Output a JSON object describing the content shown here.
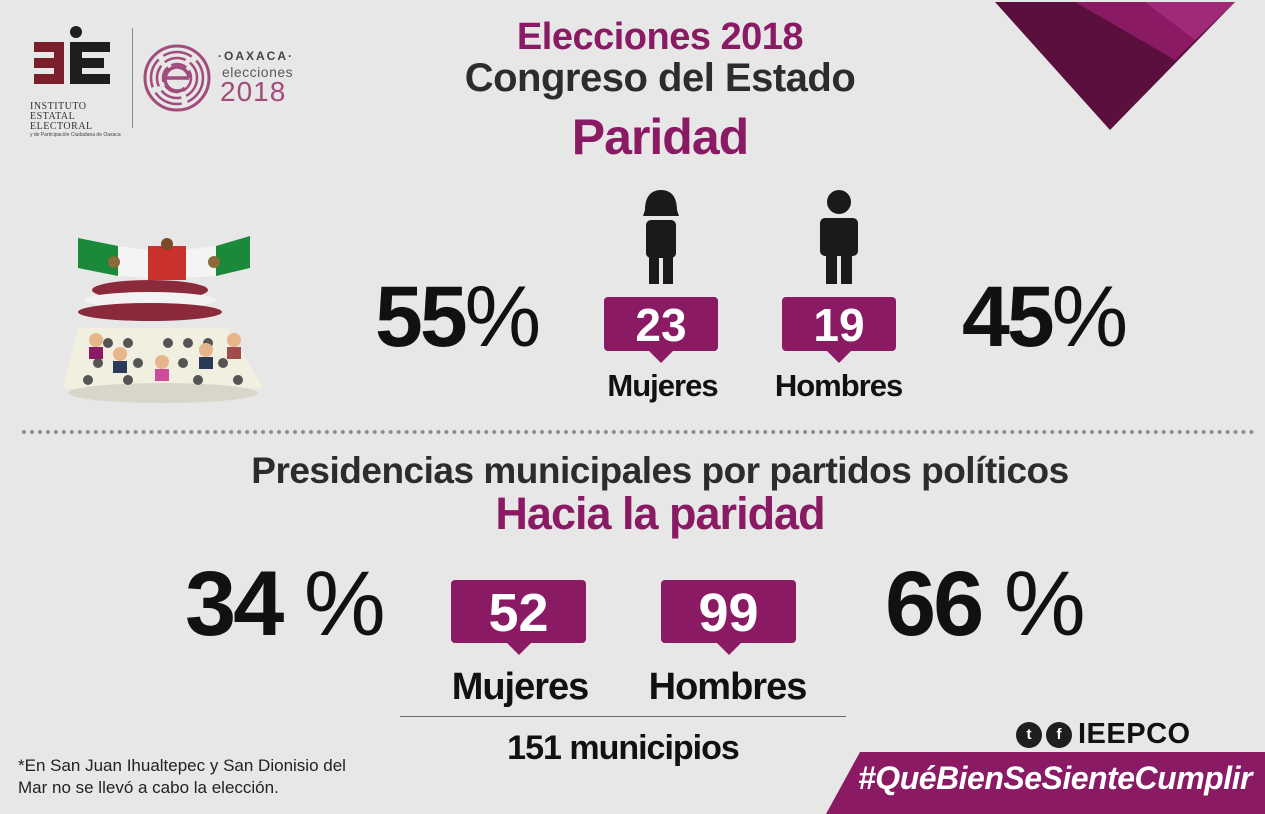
{
  "header": {
    "logo_iee_name": "INSTITUTO ESTATAL ELECTORAL",
    "logo_iee_sub": "y de Participación Ciudadana de Oaxaca",
    "logo_oaxaca_label": "·OAXACA·",
    "logo_oaxaca_sub": "elecciones",
    "logo_oaxaca_year": "2018",
    "title_line1": "Elecciones 2018",
    "title_line2": "Congreso del Estado",
    "title_line3": "Paridad"
  },
  "congreso": {
    "mujeres_pct": "55",
    "hombres_pct": "45",
    "pct_sign": "%",
    "mujeres_count": "23",
    "hombres_count": "19",
    "mujeres_label": "Mujeres",
    "hombres_label": "Hombres"
  },
  "municipales": {
    "title": "Presidencias municipales por partidos políticos",
    "subtitle": "Hacia la paridad",
    "mujeres_pct": "34",
    "hombres_pct": "66",
    "pct_sign": "%",
    "mujeres_count": "52",
    "hombres_count": "99",
    "mujeres_label": "Mujeres",
    "hombres_label": "Hombres",
    "total": "151 municipios"
  },
  "footer": {
    "note": "*En San Juan Ihualtepec y San Dionisio del Mar no se llevó a cabo la elección.",
    "social_handle": "IEEPCO",
    "hashtag": "#QuéBienSeSienteCumplir"
  },
  "colors": {
    "accent": "#8a1a63",
    "dark": "#2c2c2c",
    "background": "#e7e7e7"
  },
  "icons": [
    "woman-icon",
    "man-icon",
    "congress-illustration",
    "twitter-icon",
    "facebook-icon"
  ]
}
